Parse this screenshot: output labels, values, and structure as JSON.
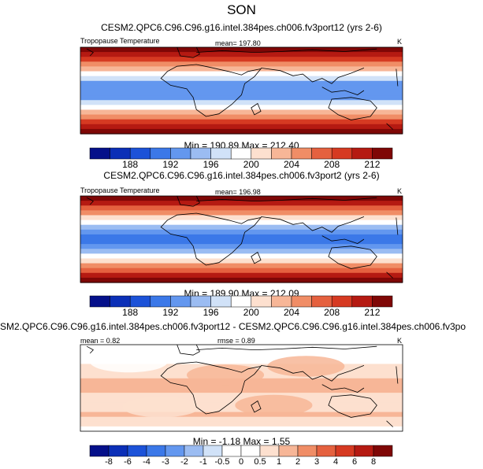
{
  "title": "SON",
  "colors": {
    "abs_scale": [
      "#05108a",
      "#0b2fb7",
      "#1c52d8",
      "#3b78e8",
      "#6397ef",
      "#9bbcf2",
      "#d1e2f8",
      "#ffffff",
      "#fde0cf",
      "#f7b697",
      "#f08d66",
      "#e5613f",
      "#d63a22",
      "#b51a12",
      "#7f0706"
    ],
    "diff_scale": [
      "#05108a",
      "#0b2fb7",
      "#1c52d8",
      "#3b78e8",
      "#6397ef",
      "#9bbcf2",
      "#d1e2f8",
      "#ffffff",
      "#ffffff",
      "#fde0cf",
      "#f7b697",
      "#f08d66",
      "#e5613f",
      "#d63a22",
      "#b51a12",
      "#7f0706"
    ],
    "coast": "#000000"
  },
  "panels": [
    {
      "case_title": "CESM2.QPC6.C96.C96.g16.intel.384pes.ch006.fv3port12 (yrs 2-6)",
      "variable": "Tropopause Temperature",
      "stat_text": "mean= 197.80",
      "units": "K",
      "min_max": "Min = 190.89 Max = 212.40"
    },
    {
      "case_title": "CESM2.QPC6.C96.C96.g16.intel.384pes.ch006.fv3port2 (yrs 2-6)",
      "variable": "Tropopause Temperature",
      "stat_text": "mean= 196.98",
      "units": "K",
      "min_max": "Min = 189.90 Max = 212.09"
    },
    {
      "case_title": "SM2.QPC6.C96.C96.g16.intel.384pes.ch006.fv3port12 - CESM2.QPC6.C96.C96.g16.intel.384pes.ch006.fv3po",
      "mean_text": "mean =   0.82",
      "rmse_text": "rmse =   0.89",
      "units": "K",
      "min_max": "Min =  -1.18 Max =   1.55"
    }
  ],
  "chart_data": [
    {
      "type": "heatmap",
      "title": "CESM2.QPC6.C96.C96.g16.intel.384pes.ch006.fv3port12 (yrs 2-6)",
      "variable": "Tropopause Temperature",
      "units": "K",
      "mean": 197.8,
      "min": 190.89,
      "max": 212.4,
      "colorbar_levels": [
        186,
        188,
        190,
        192,
        194,
        196,
        198,
        200,
        202,
        204,
        206,
        208,
        210,
        212
      ],
      "colorbar_tick_labels": [
        "188",
        "192",
        "196",
        "200",
        "204",
        "208",
        "212"
      ],
      "lat_band_values": [
        212,
        210,
        208,
        205,
        202,
        199,
        196,
        193,
        192,
        192,
        193,
        196,
        199,
        202,
        205,
        208,
        210,
        212
      ]
    },
    {
      "type": "heatmap",
      "title": "CESM2.QPC6.C96.C96.g16.intel.384pes.ch006.fv3port2 (yrs 2-6)",
      "variable": "Tropopause Temperature",
      "units": "K",
      "mean": 196.98,
      "min": 189.9,
      "max": 212.09,
      "colorbar_levels": [
        186,
        188,
        190,
        192,
        194,
        196,
        198,
        200,
        202,
        204,
        206,
        208,
        210,
        212
      ],
      "colorbar_tick_labels": [
        "188",
        "192",
        "196",
        "200",
        "204",
        "208",
        "212"
      ],
      "lat_band_values": [
        212,
        210,
        207,
        204,
        201,
        198,
        195,
        192,
        191,
        191,
        192,
        195,
        198,
        201,
        204,
        207,
        210,
        212
      ]
    },
    {
      "type": "heatmap",
      "title": "SM2.QPC6.C96.C96.g16.intel.384pes.ch006.fv3port12 - CESM2.QPC6.C96.C96.g16.intel.384pes.ch006.fv3po",
      "units": "K",
      "mean": 0.82,
      "rmse": 0.89,
      "min": -1.18,
      "max": 1.55,
      "colorbar_levels": [
        -8,
        -6,
        -4,
        -3,
        -2,
        -1,
        -0.5,
        0,
        0.5,
        1,
        2,
        3,
        4,
        6,
        8
      ],
      "colorbar_tick_labels": [
        "-8",
        "-6",
        "-4",
        "-3",
        "-2",
        "-1",
        "-0.5",
        "0",
        "0.5",
        "1",
        "2",
        "3",
        "4",
        "6",
        "8"
      ],
      "lat_band_values": [
        0.3,
        0.4,
        0.2,
        -0.2,
        0.6,
        0.8,
        0.9,
        1.0,
        1.1,
        1.0,
        0.9,
        0.8,
        0.8,
        0.9,
        1.0,
        0.8,
        0.6,
        0.4
      ]
    }
  ]
}
